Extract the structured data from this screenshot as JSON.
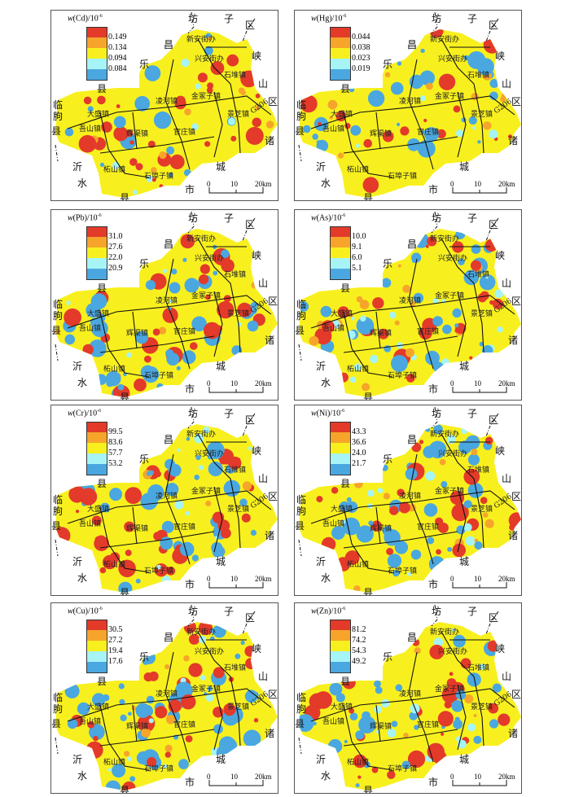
{
  "colors": {
    "c1": "#4aa7e0",
    "c2": "#a6f4f6",
    "c3": "#f8f01e",
    "c4": "#f6a52a",
    "c5": "#e33a2a"
  },
  "panels": [
    {
      "prefix": "w",
      "element": "(Cd)/10",
      "exp": "-6",
      "levels": [
        "0.149",
        "0.134",
        "0.094",
        "0.084"
      ],
      "mix": [
        0.12,
        0.05,
        0.5,
        0.08,
        0.25
      ]
    },
    {
      "prefix": "w",
      "element": "(Hg)/10",
      "exp": "-6",
      "levels": [
        "0.044",
        "0.038",
        "0.023",
        "0.019"
      ],
      "mix": [
        0.22,
        0.06,
        0.55,
        0.07,
        0.1
      ]
    },
    {
      "prefix": "w",
      "element": "(Pb)/10",
      "exp": "-6",
      "levels": [
        "31.0",
        "27.6",
        "22.0",
        "20.9"
      ],
      "mix": [
        0.25,
        0.08,
        0.42,
        0.05,
        0.2
      ]
    },
    {
      "prefix": "w",
      "element": "(As)/10",
      "exp": "-6",
      "levels": [
        "10.0",
        "9.1",
        "6.0",
        "5.1"
      ],
      "mix": [
        0.2,
        0.08,
        0.45,
        0.07,
        0.2
      ]
    },
    {
      "prefix": "w",
      "element": "(Cr)/10",
      "exp": "-6",
      "levels": [
        "99.5",
        "83.6",
        "57.7",
        "53.2"
      ],
      "mix": [
        0.22,
        0.08,
        0.4,
        0.05,
        0.25
      ]
    },
    {
      "prefix": "w",
      "element": "(Ni)/10",
      "exp": "-6",
      "levels": [
        "43.3",
        "36.6",
        "24.0",
        "21.7"
      ],
      "mix": [
        0.25,
        0.07,
        0.38,
        0.05,
        0.25
      ]
    },
    {
      "prefix": "w",
      "element": "(Cu)/10",
      "exp": "-6",
      "levels": [
        "30.5",
        "27.2",
        "19.4",
        "17.6"
      ],
      "mix": [
        0.25,
        0.07,
        0.38,
        0.05,
        0.25
      ]
    },
    {
      "prefix": "w",
      "element": "(Zn)/10",
      "exp": "-6",
      "levels": [
        "81.2",
        "74.2",
        "54.3",
        "49.2"
      ],
      "mix": [
        0.28,
        0.07,
        0.35,
        0.05,
        0.25
      ]
    }
  ],
  "places": [
    "坊",
    "子",
    "区",
    "昌",
    "乐",
    "县",
    "峡",
    "山",
    "区",
    "临",
    "朐",
    "县",
    "诸",
    "城",
    "市",
    "沂",
    "水",
    "县"
  ],
  "towns": [
    "新安街办",
    "兴安街办",
    "石堆镇",
    "金冢子镇",
    "景芝镇",
    "G206",
    "凌河镇",
    "大盛镇",
    "吾山镇",
    "辉渠镇",
    "官庄镇",
    "柘山镇",
    "石埠子镇"
  ],
  "scale": {
    "labels": [
      "0",
      "10",
      "20km"
    ]
  }
}
